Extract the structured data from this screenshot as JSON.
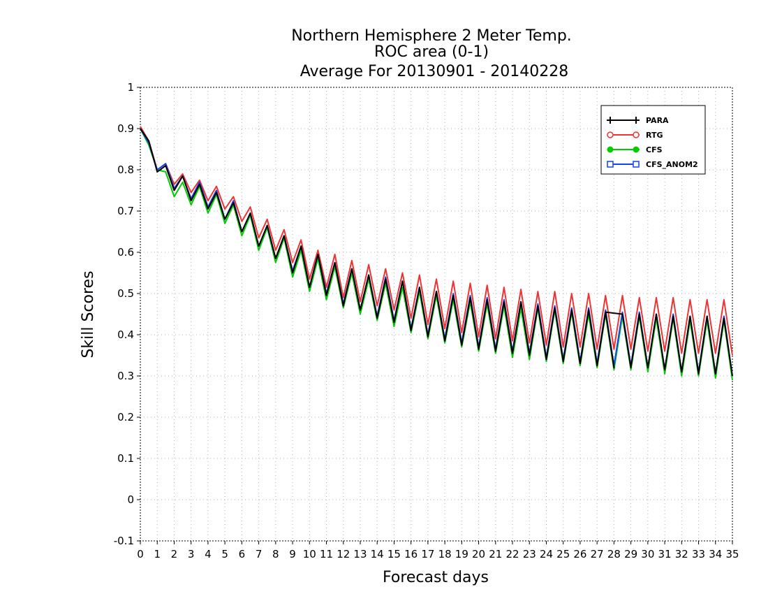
{
  "chart_data": {
    "type": "line",
    "title_lines": [
      "Northern Hemisphere 2 Meter Temp.",
      "ROC area (0-1)",
      "Average For 20130901 - 20140228"
    ],
    "xlabel": "Forecast days",
    "ylabel": "Skill Scores",
    "xlim": [
      0,
      35
    ],
    "ylim": [
      -0.1,
      1
    ],
    "xticks": [
      0,
      1,
      2,
      3,
      4,
      5,
      6,
      7,
      8,
      9,
      10,
      11,
      12,
      13,
      14,
      15,
      16,
      17,
      18,
      19,
      20,
      21,
      22,
      23,
      24,
      25,
      26,
      27,
      28,
      29,
      30,
      31,
      32,
      33,
      34,
      35
    ],
    "xtick_labels": [
      "0",
      "1",
      "2",
      "3",
      "4",
      "5",
      "6",
      "7",
      "8",
      "9",
      "10",
      "11",
      "12",
      "13",
      "14",
      "15",
      "16",
      "17",
      "18",
      "19",
      "20",
      "21",
      "22",
      "23",
      "24",
      "25",
      "26",
      "27",
      "28",
      "29",
      "30",
      "31",
      "32",
      "33",
      "34",
      "35"
    ],
    "yticks": [
      -0.1,
      0,
      0.1,
      0.2,
      0.3,
      0.4,
      0.5,
      0.6,
      0.7,
      0.8,
      0.9,
      1
    ],
    "ytick_labels": [
      "-0.1",
      "0",
      "0.1",
      "0.2",
      "0.3",
      "0.4",
      "0.5",
      "0.6",
      "0.7",
      "0.8",
      "0.9",
      "1"
    ],
    "grid": true,
    "legend_position": "top-right",
    "series": [
      {
        "name": "PARA",
        "color": "#000000",
        "marker": "plus",
        "x": [
          0,
          0.5,
          1,
          1.5,
          2,
          2.5,
          3,
          3.5,
          4,
          4.5,
          5,
          5.5,
          6,
          6.5,
          7,
          7.5,
          8,
          8.5,
          9,
          9.5,
          10,
          10.5,
          11,
          11.5,
          12,
          12.5,
          13,
          13.5,
          14,
          14.5,
          15,
          15.5,
          16,
          16.5,
          17,
          17.5,
          18,
          18.5,
          19,
          19.5,
          20,
          20.5,
          21,
          21.5,
          22,
          22.5,
          23,
          23.5,
          24,
          24.5,
          25,
          25.5,
          26,
          26.5,
          27,
          27.5,
          28,
          27.5,
          28.5,
          29,
          29.5,
          30,
          30.5,
          31,
          31.5,
          32,
          32.5,
          33,
          33.5,
          34,
          34.5,
          35
        ],
        "y": [
          0.9,
          0.87,
          0.795,
          0.81,
          0.75,
          0.785,
          0.725,
          0.765,
          0.705,
          0.745,
          0.68,
          0.72,
          0.65,
          0.695,
          0.615,
          0.665,
          0.585,
          0.64,
          0.55,
          0.615,
          0.515,
          0.595,
          0.495,
          0.575,
          0.47,
          0.56,
          0.46,
          0.545,
          0.44,
          0.535,
          0.43,
          0.53,
          0.41,
          0.515,
          0.395,
          0.505,
          0.385,
          0.495,
          0.375,
          0.49,
          0.365,
          0.485,
          0.36,
          0.48,
          0.355,
          0.48,
          0.35,
          0.47,
          0.34,
          0.465,
          0.335,
          0.46,
          0.33,
          0.46,
          0.325,
          0.455,
          0.32,
          0.455,
          0.45,
          0.32,
          0.45,
          0.32,
          0.45,
          0.315,
          0.445,
          0.31,
          0.445,
          0.305,
          0.445,
          0.305,
          0.44,
          0.3
        ]
      },
      {
        "name": "RTG",
        "color": "#ee3333",
        "marker": "open-circle",
        "x": [
          0,
          0.5,
          1,
          1.5,
          2,
          2.5,
          3,
          3.5,
          4,
          4.5,
          5,
          5.5,
          6,
          6.5,
          7,
          7.5,
          8,
          8.5,
          9,
          9.5,
          10,
          10.5,
          11,
          11.5,
          12,
          12.5,
          13,
          13.5,
          14,
          14.5,
          15,
          15.5,
          16,
          16.5,
          17,
          17.5,
          18,
          18.5,
          19,
          19.5,
          20,
          20.5,
          21,
          21.5,
          22,
          22.5,
          23,
          23.5,
          24,
          24.5,
          25,
          25.5,
          26,
          26.5,
          27,
          27.5,
          28,
          28.5,
          29,
          29.5,
          30,
          30.5,
          31,
          31.5,
          32,
          32.5,
          33,
          33.5,
          34,
          34.5,
          35
        ],
        "y": [
          0.905,
          0.87,
          0.8,
          0.815,
          0.765,
          0.79,
          0.745,
          0.775,
          0.725,
          0.76,
          0.705,
          0.735,
          0.675,
          0.71,
          0.635,
          0.68,
          0.605,
          0.655,
          0.575,
          0.63,
          0.535,
          0.605,
          0.515,
          0.595,
          0.49,
          0.58,
          0.48,
          0.57,
          0.47,
          0.56,
          0.46,
          0.55,
          0.44,
          0.545,
          0.425,
          0.535,
          0.415,
          0.53,
          0.405,
          0.525,
          0.395,
          0.52,
          0.39,
          0.515,
          0.385,
          0.51,
          0.38,
          0.505,
          0.375,
          0.505,
          0.37,
          0.5,
          0.37,
          0.5,
          0.365,
          0.495,
          0.365,
          0.495,
          0.365,
          0.49,
          0.36,
          0.49,
          0.36,
          0.49,
          0.355,
          0.485,
          0.355,
          0.485,
          0.355,
          0.485,
          0.35
        ]
      },
      {
        "name": "CFS",
        "color": "#00cc00",
        "marker": "filled-circle",
        "x": [
          0,
          0.5,
          1,
          1.5,
          2,
          2.5,
          3,
          3.5,
          4,
          4.5,
          5,
          5.5,
          6,
          6.5,
          7,
          7.5,
          8,
          8.5,
          9,
          9.5,
          10,
          10.5,
          11,
          11.5,
          12,
          12.5,
          13,
          13.5,
          14,
          14.5,
          15,
          15.5,
          16,
          16.5,
          17,
          17.5,
          18,
          18.5,
          19,
          19.5,
          20,
          20.5,
          21,
          21.5,
          22,
          22.5,
          23,
          23.5,
          24,
          24.5,
          25,
          25.5,
          26,
          26.5,
          27,
          27.5,
          28,
          28.5,
          29,
          29.5,
          30,
          30.5,
          31,
          31.5,
          32,
          32.5,
          33,
          33.5,
          34,
          34.5,
          35
        ],
        "y": [
          0.9,
          0.86,
          0.8,
          0.795,
          0.735,
          0.77,
          0.715,
          0.76,
          0.695,
          0.74,
          0.67,
          0.715,
          0.64,
          0.69,
          0.605,
          0.66,
          0.575,
          0.635,
          0.54,
          0.605,
          0.505,
          0.585,
          0.485,
          0.565,
          0.465,
          0.55,
          0.45,
          0.535,
          0.435,
          0.525,
          0.42,
          0.515,
          0.405,
          0.505,
          0.39,
          0.495,
          0.38,
          0.485,
          0.37,
          0.48,
          0.36,
          0.475,
          0.355,
          0.47,
          0.345,
          0.465,
          0.34,
          0.465,
          0.335,
          0.46,
          0.33,
          0.455,
          0.325,
          0.45,
          0.32,
          0.45,
          0.315,
          0.445,
          0.315,
          0.445,
          0.31,
          0.44,
          0.305,
          0.44,
          0.3,
          0.435,
          0.3,
          0.435,
          0.295,
          0.435,
          0.29
        ]
      },
      {
        "name": "CFS_ANOM2",
        "color": "#1144ee",
        "marker": "open-square",
        "x": [
          0,
          0.5,
          1,
          1.5,
          2,
          2.5,
          3,
          3.5,
          4,
          4.5,
          5,
          5.5,
          6,
          6.5,
          7,
          7.5,
          8,
          8.5,
          9,
          9.5,
          10,
          10.5,
          11,
          11.5,
          12,
          12.5,
          13,
          13.5,
          14,
          14.5,
          15,
          15.5,
          16,
          16.5,
          17,
          17.5,
          18,
          18.5,
          19,
          19.5,
          20,
          20.5,
          21,
          21.5,
          22,
          22.5,
          23,
          23.5,
          24,
          24.5,
          25,
          25.5,
          26,
          26.5,
          27,
          27.5,
          28,
          28.5,
          29,
          29.5,
          30,
          30.5,
          31,
          31.5,
          32,
          32.5,
          33,
          33.5,
          34,
          34.5,
          35
        ],
        "y": [
          0.9,
          0.865,
          0.8,
          0.815,
          0.755,
          0.785,
          0.73,
          0.77,
          0.71,
          0.75,
          0.68,
          0.725,
          0.65,
          0.695,
          0.615,
          0.665,
          0.585,
          0.64,
          0.555,
          0.615,
          0.515,
          0.595,
          0.5,
          0.575,
          0.475,
          0.56,
          0.46,
          0.545,
          0.445,
          0.54,
          0.435,
          0.53,
          0.415,
          0.515,
          0.4,
          0.505,
          0.39,
          0.5,
          0.38,
          0.495,
          0.37,
          0.49,
          0.365,
          0.485,
          0.36,
          0.48,
          0.355,
          0.475,
          0.345,
          0.47,
          0.34,
          0.465,
          0.335,
          0.465,
          0.33,
          0.46,
          0.325,
          0.455,
          0.325,
          0.455,
          0.32,
          0.45,
          0.315,
          0.45,
          0.31,
          0.445,
          0.31,
          0.445,
          0.305,
          0.445,
          0.3
        ]
      }
    ]
  }
}
